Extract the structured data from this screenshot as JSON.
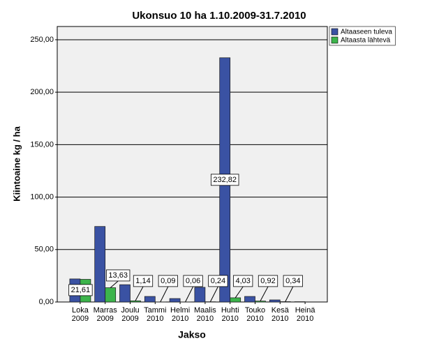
{
  "chart_data": {
    "type": "bar",
    "title": "Ukonsuo 10 ha 1.10.2009-31.7.2010",
    "x_label": "Jakso",
    "y_label": "Kiintoaine kg / ha",
    "categories": [
      [
        "Loka",
        "2009"
      ],
      [
        "Marras",
        "2009"
      ],
      [
        "Joulu",
        "2009"
      ],
      [
        "Tammi",
        "2010"
      ],
      [
        "Helmi",
        "2010"
      ],
      [
        "Maalis",
        "2010"
      ],
      [
        "Huhti",
        "2010"
      ],
      [
        "Touko",
        "2010"
      ],
      [
        "Kesä",
        "2010"
      ],
      [
        "Heinä",
        "2010"
      ]
    ],
    "series": [
      {
        "name": "Altaaseen tuleva",
        "color": "#3a52a3",
        "values": [
          22,
          72,
          16.5,
          5.3,
          3.3,
          14,
          232.82,
          5.3,
          2,
          0.3
        ],
        "value_labels": [
          null,
          null,
          null,
          null,
          null,
          null,
          "232,82",
          null,
          null,
          null
        ]
      },
      {
        "name": "Altaasta lähtevä",
        "color": "#3cb44b",
        "values": [
          21.61,
          13.63,
          1.14,
          0.09,
          0.06,
          0.24,
          4.03,
          0.92,
          0.34,
          null
        ],
        "value_labels": [
          "21,61",
          "13,63",
          "1,14",
          "0,09",
          "0,06",
          "0,24",
          "4,03",
          "0,92",
          "0,34",
          null
        ]
      }
    ],
    "ylim": [
      0,
      262.6
    ],
    "yticks": [
      {
        "value": 0,
        "label": "0,00"
      },
      {
        "value": 50,
        "label": "50,00"
      },
      {
        "value": 100,
        "label": "100,00"
      },
      {
        "value": 150,
        "label": "150,00"
      },
      {
        "value": 200,
        "label": "200,00"
      },
      {
        "value": 250,
        "label": "250,00"
      }
    ],
    "grid": true,
    "legend": "top-right"
  }
}
